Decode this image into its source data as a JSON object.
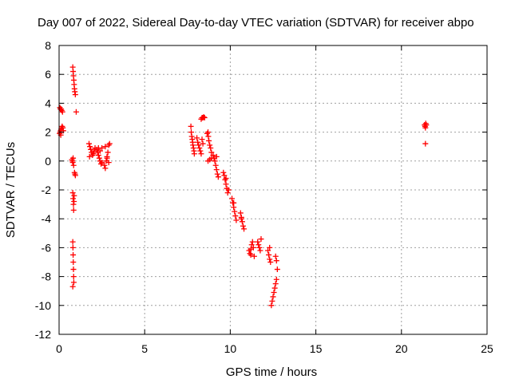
{
  "chart_data": {
    "type": "scatter",
    "title": "Day 007 of 2022, Sidereal Day-to-day VTEC variation (SDTVAR) for receiver abpo",
    "xlabel": "GPS time / hours",
    "ylabel": "SDTVAR / TECUs",
    "xlim": [
      0,
      25
    ],
    "ylim": [
      -12,
      8
    ],
    "xticks": [
      0,
      5,
      10,
      15,
      20,
      25
    ],
    "yticks": [
      -12,
      -10,
      -8,
      -6,
      -4,
      -2,
      0,
      2,
      4,
      6,
      8
    ],
    "grid": true,
    "marker": "+",
    "color": "#ff0000",
    "series": [
      {
        "name": "SDTVAR",
        "points": [
          [
            0.05,
            3.7
          ],
          [
            0.08,
            3.6
          ],
          [
            0.12,
            3.6
          ],
          [
            0.15,
            3.5
          ],
          [
            0.2,
            3.4
          ],
          [
            0.03,
            1.9
          ],
          [
            0.06,
            2.0
          ],
          [
            0.09,
            2.1
          ],
          [
            0.12,
            2.2
          ],
          [
            0.15,
            2.3
          ],
          [
            0.18,
            2.4
          ],
          [
            0.22,
            2.3
          ],
          [
            0.25,
            2.1
          ],
          [
            0.1,
            1.8
          ],
          [
            0.8,
            6.5
          ],
          [
            0.82,
            6.2
          ],
          [
            0.84,
            5.9
          ],
          [
            0.86,
            5.6
          ],
          [
            0.88,
            5.3
          ],
          [
            0.9,
            5.0
          ],
          [
            0.92,
            4.8
          ],
          [
            0.95,
            4.6
          ],
          [
            1.0,
            3.4
          ],
          [
            0.75,
            0.1
          ],
          [
            0.78,
            0.0
          ],
          [
            0.8,
            -0.1
          ],
          [
            0.82,
            0.2
          ],
          [
            0.85,
            -0.3
          ],
          [
            0.9,
            -0.8
          ],
          [
            0.93,
            -0.9
          ],
          [
            0.95,
            -1.0
          ],
          [
            0.8,
            -2.2
          ],
          [
            0.82,
            -2.6
          ],
          [
            0.84,
            -3.0
          ],
          [
            0.85,
            -3.4
          ],
          [
            0.87,
            -2.8
          ],
          [
            0.88,
            -2.4
          ],
          [
            0.8,
            -5.6
          ],
          [
            0.81,
            -6.0
          ],
          [
            0.82,
            -6.5
          ],
          [
            0.83,
            -7.0
          ],
          [
            0.84,
            -7.5
          ],
          [
            0.85,
            -8.0
          ],
          [
            0.86,
            -8.4
          ],
          [
            0.8,
            -8.7
          ],
          [
            1.75,
            1.2
          ],
          [
            1.8,
            1.0
          ],
          [
            1.85,
            0.8
          ],
          [
            1.9,
            0.6
          ],
          [
            1.95,
            0.4
          ],
          [
            2.0,
            0.5
          ],
          [
            2.05,
            0.7
          ],
          [
            2.1,
            0.9
          ],
          [
            1.78,
            0.3
          ],
          [
            2.2,
            0.8
          ],
          [
            2.25,
            0.6
          ],
          [
            2.3,
            0.4
          ],
          [
            2.35,
            0.2
          ],
          [
            2.4,
            0.0
          ],
          [
            2.45,
            -0.2
          ],
          [
            2.5,
            -0.1
          ],
          [
            2.3,
            0.9
          ],
          [
            2.4,
            0.7
          ],
          [
            2.5,
            0.9
          ],
          [
            2.65,
            -0.3
          ],
          [
            2.7,
            -0.5
          ],
          [
            2.75,
            0.0
          ],
          [
            2.8,
            0.3
          ],
          [
            2.85,
            0.6
          ],
          [
            2.9,
            1.1
          ],
          [
            2.95,
            1.2
          ],
          [
            2.7,
            1.0
          ],
          [
            2.8,
            0.2
          ],
          [
            2.9,
            -0.1
          ],
          [
            7.7,
            2.4
          ],
          [
            7.72,
            2.0
          ],
          [
            7.75,
            1.7
          ],
          [
            7.78,
            1.5
          ],
          [
            7.8,
            1.3
          ],
          [
            7.82,
            1.1
          ],
          [
            7.85,
            0.9
          ],
          [
            7.88,
            0.7
          ],
          [
            7.9,
            0.5
          ],
          [
            8.05,
            1.6
          ],
          [
            8.1,
            1.3
          ],
          [
            8.15,
            1.1
          ],
          [
            8.2,
            0.9
          ],
          [
            8.25,
            0.7
          ],
          [
            8.3,
            0.5
          ],
          [
            8.35,
            1.5
          ],
          [
            8.4,
            1.2
          ],
          [
            8.3,
            2.9
          ],
          [
            8.35,
            3.0
          ],
          [
            8.4,
            3.0
          ],
          [
            8.45,
            3.05
          ],
          [
            8.5,
            3.0
          ],
          [
            8.7,
            2.0
          ],
          [
            8.72,
            1.7
          ],
          [
            8.75,
            1.4
          ],
          [
            8.8,
            1.1
          ],
          [
            8.85,
            0.9
          ],
          [
            8.9,
            0.6
          ],
          [
            8.65,
            1.9
          ],
          [
            8.7,
            0.0
          ],
          [
            8.8,
            0.1
          ],
          [
            8.9,
            0.2
          ],
          [
            9.0,
            0.4
          ],
          [
            9.05,
            0.2
          ],
          [
            9.1,
            0.0
          ],
          [
            9.15,
            -0.3
          ],
          [
            9.2,
            -0.6
          ],
          [
            9.25,
            -0.9
          ],
          [
            9.3,
            -1.1
          ],
          [
            9.2,
            0.3
          ],
          [
            9.6,
            -0.8
          ],
          [
            9.65,
            -1.0
          ],
          [
            9.7,
            -1.3
          ],
          [
            9.75,
            -1.6
          ],
          [
            9.8,
            -1.9
          ],
          [
            9.85,
            -2.2
          ],
          [
            9.9,
            -2.0
          ],
          [
            9.75,
            -1.2
          ],
          [
            10.1,
            -2.6
          ],
          [
            10.15,
            -2.9
          ],
          [
            10.2,
            -3.2
          ],
          [
            10.25,
            -3.5
          ],
          [
            10.3,
            -3.8
          ],
          [
            10.35,
            -4.1
          ],
          [
            10.2,
            -2.9
          ],
          [
            10.6,
            -3.6
          ],
          [
            10.65,
            -3.9
          ],
          [
            10.7,
            -4.2
          ],
          [
            10.75,
            -4.5
          ],
          [
            10.8,
            -4.7
          ],
          [
            10.65,
            -4.0
          ],
          [
            11.1,
            -6.2
          ],
          [
            11.15,
            -6.4
          ],
          [
            11.2,
            -6.1
          ],
          [
            11.25,
            -5.8
          ],
          [
            11.3,
            -5.6
          ],
          [
            11.35,
            -6.0
          ],
          [
            11.4,
            -6.6
          ],
          [
            11.2,
            -6.5
          ],
          [
            11.6,
            -5.6
          ],
          [
            11.65,
            -5.8
          ],
          [
            11.7,
            -6.0
          ],
          [
            11.75,
            -6.2
          ],
          [
            11.8,
            -5.4
          ],
          [
            12.2,
            -6.2
          ],
          [
            12.25,
            -6.5
          ],
          [
            12.3,
            -6.8
          ],
          [
            12.35,
            -7.0
          ],
          [
            12.3,
            -6.0
          ],
          [
            12.4,
            -10.0
          ],
          [
            12.45,
            -9.7
          ],
          [
            12.5,
            -9.4
          ],
          [
            12.55,
            -9.1
          ],
          [
            12.6,
            -8.8
          ],
          [
            12.65,
            -8.5
          ],
          [
            12.7,
            -8.2
          ],
          [
            12.75,
            -7.5
          ],
          [
            12.7,
            -6.9
          ],
          [
            12.65,
            -6.6
          ],
          [
            21.35,
            2.5
          ],
          [
            21.38,
            2.4
          ],
          [
            21.4,
            2.3
          ],
          [
            21.42,
            2.6
          ],
          [
            21.45,
            2.5
          ],
          [
            21.4,
            1.2
          ]
        ]
      }
    ]
  }
}
